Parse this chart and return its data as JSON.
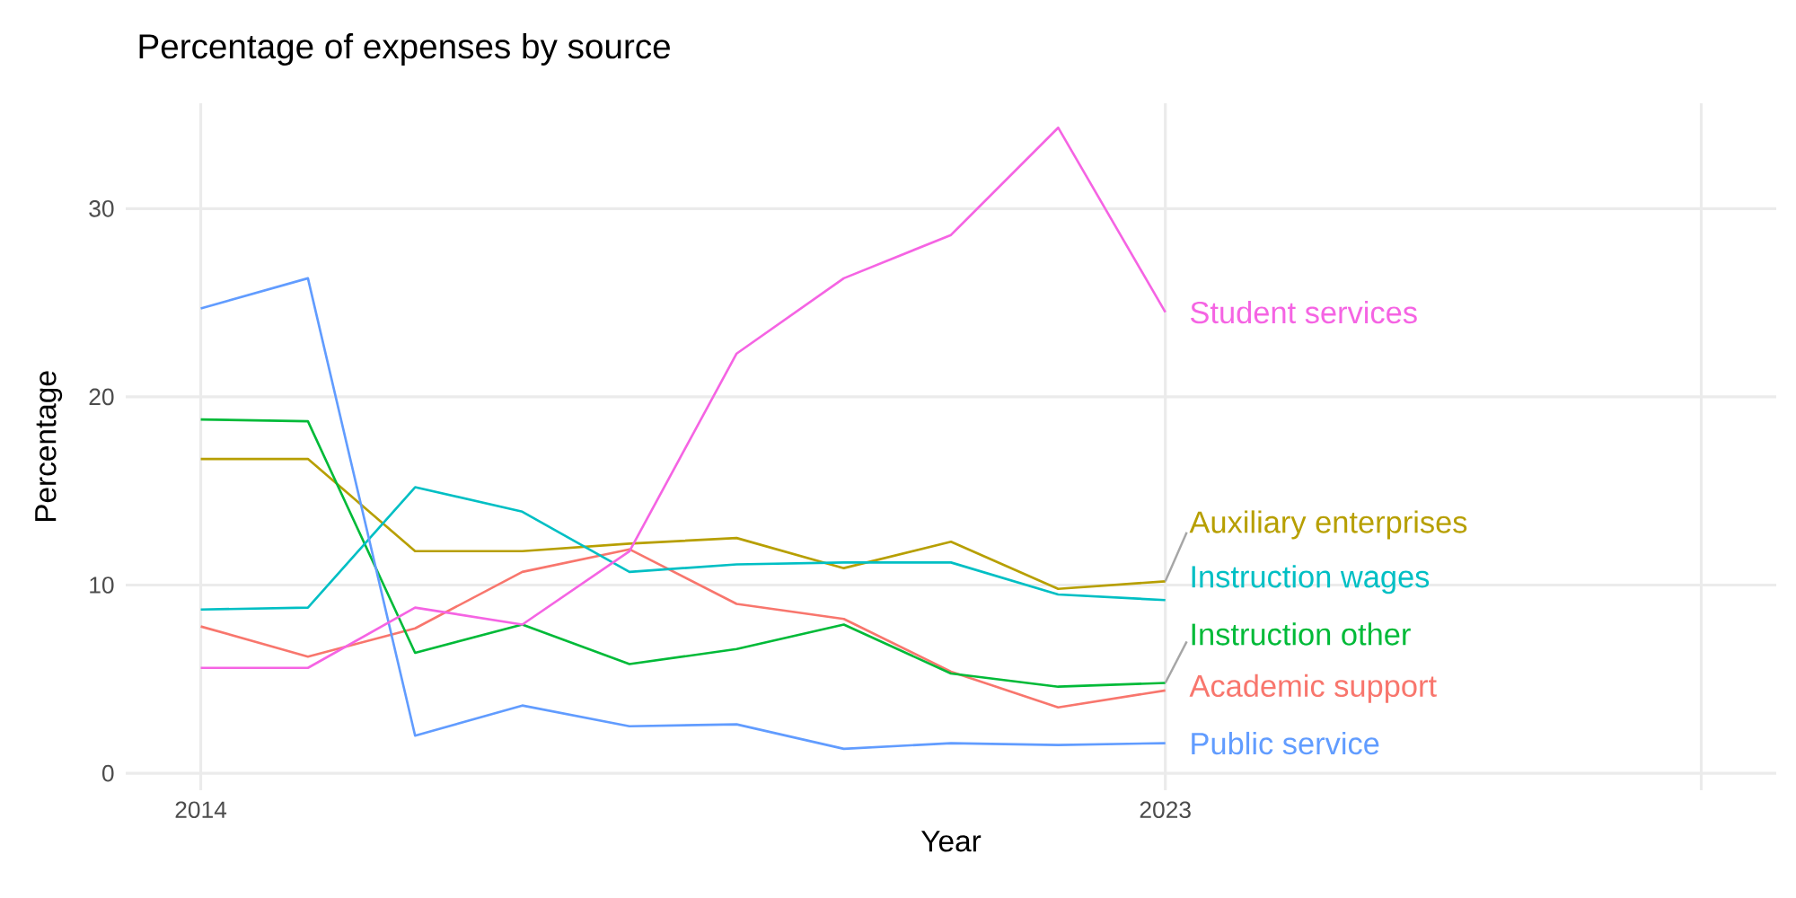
{
  "chart_data": {
    "type": "line",
    "title": "Percentage of expenses by source",
    "xlabel": "Year",
    "ylabel": "Percentage",
    "x": [
      2014,
      2015,
      2016,
      2017,
      2018,
      2019,
      2020,
      2021,
      2022,
      2023
    ],
    "series": [
      {
        "name": "Academic support",
        "color": "#F8766D",
        "values": [
          7.8,
          6.2,
          7.7,
          10.7,
          11.9,
          9.0,
          8.2,
          5.4,
          3.5,
          4.4
        ]
      },
      {
        "name": "Auxiliary enterprises",
        "color": "#B79F00",
        "values": [
          16.7,
          16.7,
          11.8,
          11.8,
          12.2,
          12.5,
          10.9,
          12.3,
          9.8,
          10.2
        ]
      },
      {
        "name": "Instruction other",
        "color": "#00BA38",
        "values": [
          18.8,
          18.7,
          6.4,
          7.9,
          5.8,
          6.6,
          7.9,
          5.3,
          4.6,
          4.8
        ]
      },
      {
        "name": "Instruction wages",
        "color": "#00BFC4",
        "values": [
          8.7,
          8.8,
          15.2,
          13.9,
          10.7,
          11.1,
          11.2,
          11.2,
          9.5,
          9.2
        ]
      },
      {
        "name": "Public service",
        "color": "#619CFF",
        "values": [
          24.7,
          26.3,
          2.0,
          3.6,
          2.5,
          2.6,
          1.3,
          1.6,
          1.5,
          1.6
        ]
      },
      {
        "name": "Student services",
        "color": "#F564E3",
        "values": [
          5.6,
          5.6,
          8.8,
          7.9,
          11.8,
          22.3,
          26.3,
          28.6,
          34.3,
          24.5
        ]
      }
    ],
    "xlim": [
      2013.3,
      2028.7
    ],
    "ylim": [
      -0.9,
      35.6
    ],
    "xticks": [
      2014,
      2023,
      {
        "value": 2028,
        "label": null
      }
    ],
    "yticks": [
      0,
      10,
      20,
      30
    ],
    "grid": true,
    "legend": false,
    "marker": "none",
    "line_style": "solid"
  }
}
